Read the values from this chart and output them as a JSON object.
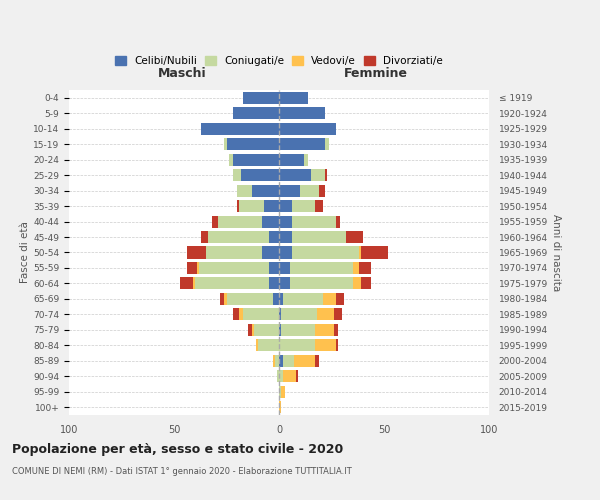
{
  "age_groups": [
    "0-4",
    "5-9",
    "10-14",
    "15-19",
    "20-24",
    "25-29",
    "30-34",
    "35-39",
    "40-44",
    "45-49",
    "50-54",
    "55-59",
    "60-64",
    "65-69",
    "70-74",
    "75-79",
    "80-84",
    "85-89",
    "90-94",
    "95-99",
    "100+"
  ],
  "birth_years": [
    "2015-2019",
    "2010-2014",
    "2005-2009",
    "2000-2004",
    "1995-1999",
    "1990-1994",
    "1985-1989",
    "1980-1984",
    "1975-1979",
    "1970-1974",
    "1965-1969",
    "1960-1964",
    "1955-1959",
    "1950-1954",
    "1945-1949",
    "1940-1944",
    "1935-1939",
    "1930-1934",
    "1925-1929",
    "1920-1924",
    "≤ 1919"
  ],
  "colors": {
    "celibi": "#4a72b0",
    "coniugati": "#c5d9a0",
    "vedovi": "#ffc14e",
    "divorziati": "#c0392b"
  },
  "males": {
    "celibi": [
      17,
      22,
      37,
      25,
      22,
      18,
      13,
      7,
      8,
      5,
      8,
      5,
      5,
      3,
      0,
      0,
      0,
      0,
      0,
      0,
      0
    ],
    "coniugati": [
      0,
      0,
      0,
      1,
      2,
      4,
      7,
      12,
      21,
      29,
      27,
      33,
      35,
      22,
      17,
      12,
      10,
      2,
      1,
      0,
      0
    ],
    "vedovi": [
      0,
      0,
      0,
      0,
      0,
      0,
      0,
      0,
      0,
      0,
      0,
      1,
      1,
      1,
      2,
      1,
      1,
      1,
      0,
      0,
      0
    ],
    "divorziati": [
      0,
      0,
      0,
      0,
      0,
      0,
      0,
      1,
      3,
      3,
      9,
      5,
      6,
      2,
      3,
      2,
      0,
      0,
      0,
      0,
      0
    ]
  },
  "females": {
    "celibi": [
      14,
      22,
      27,
      22,
      12,
      15,
      10,
      6,
      6,
      6,
      6,
      5,
      5,
      2,
      1,
      1,
      0,
      2,
      0,
      0,
      0
    ],
    "coniugati": [
      0,
      0,
      0,
      2,
      2,
      7,
      9,
      11,
      21,
      26,
      32,
      30,
      30,
      19,
      17,
      16,
      17,
      5,
      2,
      1,
      0
    ],
    "vedovi": [
      0,
      0,
      0,
      0,
      0,
      0,
      0,
      0,
      0,
      0,
      1,
      3,
      4,
      6,
      8,
      9,
      10,
      10,
      6,
      2,
      1
    ],
    "divorziati": [
      0,
      0,
      0,
      0,
      0,
      1,
      3,
      4,
      2,
      8,
      13,
      6,
      5,
      4,
      4,
      2,
      1,
      2,
      1,
      0,
      0
    ]
  },
  "title": "Popolazione per età, sesso e stato civile - 2020",
  "subtitle": "COMUNE DI NEMI (RM) - Dati ISTAT 1° gennaio 2020 - Elaborazione TUTTITALIA.IT",
  "xlabel_left": "Maschi",
  "xlabel_right": "Femmine",
  "ylabel_left": "Fasce di età",
  "ylabel_right": "Anni di nascita",
  "xlim": 100,
  "background_color": "#f0f0f0",
  "plot_bg": "#ffffff"
}
